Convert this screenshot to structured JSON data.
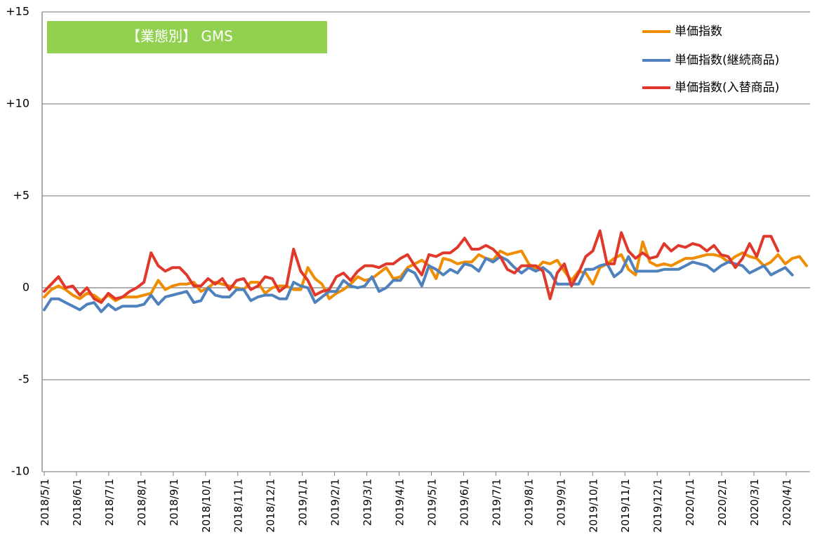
{
  "chart_data": {
    "type": "line",
    "title": "【業態別】 GMS",
    "title_box_color": "#92D050",
    "xlabel": "",
    "ylabel": "",
    "ylim": [
      -10,
      15
    ],
    "yticks": [
      15,
      10,
      5,
      0,
      -5,
      -10
    ],
    "ytick_labels": [
      "+15",
      "+10",
      "+5",
      "0",
      "-5",
      "-10"
    ],
    "xtick_labels": [
      "2018/5/1",
      "2018/6/1",
      "2018/7/1",
      "2018/8/1",
      "2018/9/1",
      "2018/10/1",
      "2018/11/1",
      "2018/12/1",
      "2019/1/1",
      "2019/2/1",
      "2019/3/1",
      "2019/4/1",
      "2019/5/1",
      "2019/6/1",
      "2019/7/1",
      "2019/8/1",
      "2019/9/1",
      "2019/10/1",
      "2019/11/1",
      "2019/12/1",
      "2020/1/1",
      "2020/2/1",
      "2020/3/1",
      "2020/4/1"
    ],
    "x_start": "2018/4/30",
    "x_interval": "weekly",
    "legend_position": "top-right",
    "grid": "horizontal",
    "series": [
      {
        "name": "単価指数",
        "color": "#F08C00",
        "values": [
          -0.5,
          -0.1,
          0.1,
          -0.1,
          -0.4,
          -0.6,
          -0.3,
          -0.4,
          -0.7,
          -0.4,
          -0.7,
          -0.5,
          -0.5,
          -0.5,
          -0.4,
          -0.3,
          0.4,
          -0.1,
          0.1,
          0.2,
          0.2,
          0.3,
          -0.2,
          0.0,
          0.3,
          0.2,
          0.1,
          0.0,
          -0.1,
          0.3,
          0.3,
          -0.3,
          0.0,
          0.1,
          0.1,
          -0.1,
          -0.1,
          1.1,
          0.5,
          0.2,
          -0.6,
          -0.3,
          -0.1,
          0.2,
          0.6,
          0.4,
          0.5,
          0.8,
          1.1,
          0.5,
          0.6,
          1.1,
          1.3,
          1.5,
          1.2,
          0.5,
          1.6,
          1.5,
          1.3,
          1.4,
          1.4,
          1.8,
          1.6,
          1.5,
          2.0,
          1.8,
          1.9,
          2.0,
          1.3,
          1.0,
          1.4,
          1.3,
          1.5,
          0.9,
          0.4,
          0.9,
          0.8,
          0.2,
          1.1,
          1.3,
          1.6,
          1.8,
          1.0,
          0.7,
          2.5,
          1.4,
          1.2,
          1.3,
          1.2,
          1.4,
          1.6,
          1.6,
          1.7,
          1.8,
          1.8,
          1.7,
          1.4,
          1.7,
          1.9,
          1.7,
          1.6,
          1.2,
          1.4,
          1.8,
          1.3,
          1.6,
          1.7,
          1.2
        ]
      },
      {
        "name": "単価指数(継続商品)",
        "color": "#4F81BD",
        "values": [
          -1.2,
          -0.6,
          -0.6,
          -0.8,
          -1.0,
          -1.2,
          -0.9,
          -0.8,
          -1.3,
          -0.9,
          -1.2,
          -1.0,
          -1.0,
          -1.0,
          -0.9,
          -0.4,
          -0.9,
          -0.5,
          -0.4,
          -0.3,
          -0.2,
          -0.8,
          -0.7,
          0.0,
          -0.4,
          -0.5,
          -0.5,
          -0.1,
          -0.1,
          -0.7,
          -0.5,
          -0.4,
          -0.4,
          -0.6,
          -0.6,
          0.3,
          0.1,
          0.0,
          -0.8,
          -0.5,
          -0.2,
          -0.2,
          0.4,
          0.1,
          0.0,
          0.1,
          0.6,
          -0.2,
          0.0,
          0.4,
          0.4,
          1.0,
          0.8,
          0.1,
          1.2,
          1.0,
          0.7,
          1.0,
          0.8,
          1.3,
          1.2,
          0.9,
          1.6,
          1.4,
          1.7,
          1.5,
          1.1,
          0.8,
          1.1,
          0.9,
          1.1,
          0.8,
          0.2,
          0.2,
          0.2,
          0.2,
          1.0,
          1.0,
          1.2,
          1.3,
          0.6,
          0.9,
          1.7,
          0.9,
          0.9,
          0.9,
          0.9,
          1.0,
          1.0,
          1.0,
          1.2,
          1.4,
          1.3,
          1.2,
          0.9,
          1.2,
          1.4,
          1.3,
          1.2,
          0.8,
          1.0,
          1.2,
          0.7,
          0.9,
          1.1,
          0.7
        ]
      },
      {
        "name": "単価指数(入替商品)",
        "color": "#E0392B",
        "values": [
          -0.2,
          0.2,
          0.6,
          0.0,
          0.1,
          -0.4,
          0.0,
          -0.6,
          -0.8,
          -0.3,
          -0.6,
          -0.5,
          -0.2,
          0.0,
          0.3,
          1.9,
          1.2,
          0.9,
          1.1,
          1.1,
          0.7,
          0.1,
          0.1,
          0.5,
          0.2,
          0.5,
          -0.1,
          0.4,
          0.5,
          -0.1,
          0.1,
          0.6,
          0.5,
          -0.2,
          0.1,
          2.1,
          0.9,
          0.4,
          -0.4,
          -0.2,
          -0.1,
          0.6,
          0.8,
          0.4,
          0.9,
          1.2,
          1.2,
          1.1,
          1.3,
          1.3,
          1.6,
          1.8,
          1.2,
          0.7,
          1.8,
          1.7,
          1.9,
          1.9,
          2.2,
          2.7,
          2.1,
          2.1,
          2.3,
          2.1,
          1.7,
          1.0,
          0.8,
          1.2,
          1.2,
          1.2,
          0.9,
          -0.6,
          0.8,
          1.3,
          0.1,
          0.8,
          1.7,
          2.0,
          3.1,
          1.3,
          1.3,
          3.0,
          2.0,
          1.6,
          1.9,
          1.6,
          1.7,
          2.4,
          2.0,
          2.3,
          2.2,
          2.4,
          2.3,
          2.0,
          2.3,
          1.8,
          1.7,
          1.1,
          1.6,
          2.4,
          1.7,
          2.8,
          2.8,
          2.0
        ]
      }
    ]
  }
}
